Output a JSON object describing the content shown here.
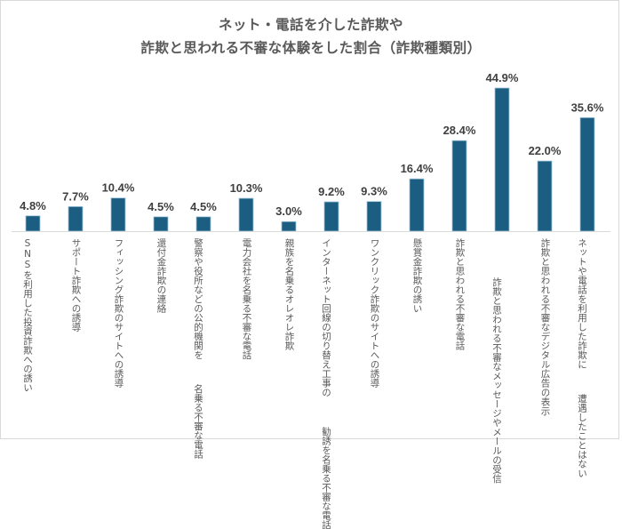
{
  "chart_data": {
    "type": "bar",
    "title": [
      "ネット・電話を介した詐欺や",
      "詐欺と思われる不審な体験をした割合（詐欺種類別）"
    ],
    "xlabel": "",
    "ylabel": "",
    "ylim": [
      0,
      50
    ],
    "grid": false,
    "legend": "none",
    "unit": "%",
    "bar_color": "#1b5e82",
    "categories": [
      [
        "SNSを利用した",
        "投資詐欺への誘い"
      ],
      [
        "サポート詐欺への誘導"
      ],
      [
        "フィッシング詐欺のサイトへの誘導"
      ],
      [
        "還付金詐欺の連絡"
      ],
      [
        "警察や役所などの公的機関を",
        "名乗る不審な電話"
      ],
      [
        "電力会社を名乗る不審な電話"
      ],
      [
        "親族を名乗るオレオレ詐欺"
      ],
      [
        "インターネット回線の切り替え工事の",
        "勧誘を名乗る不審な電話"
      ],
      [
        "ワンクリック詐欺のサイトへの誘導"
      ],
      [
        "懸賞金詐欺の誘い"
      ],
      [
        "詐欺と思われる不審な電話"
      ],
      [
        "詐欺と思われる",
        "不審なメッセージやメールの受信"
      ],
      [
        "詐欺と思われる不審なデジタル広告の表示"
      ],
      [
        "ネットや電話を利用した詐欺に",
        "遭遇したことはない"
      ]
    ],
    "values": [
      4.8,
      7.7,
      10.4,
      4.5,
      4.5,
      10.3,
      3.0,
      9.2,
      9.3,
      16.4,
      28.4,
      44.9,
      22.0,
      35.6
    ],
    "labels": [
      "4.8%",
      "7.7%",
      "10.4%",
      "4.5%",
      "4.5%",
      "10.3%",
      "3.0%",
      "9.2%",
      "9.3%",
      "16.4%",
      "28.4%",
      "44.9%",
      "22.0%",
      "35.6%"
    ]
  }
}
